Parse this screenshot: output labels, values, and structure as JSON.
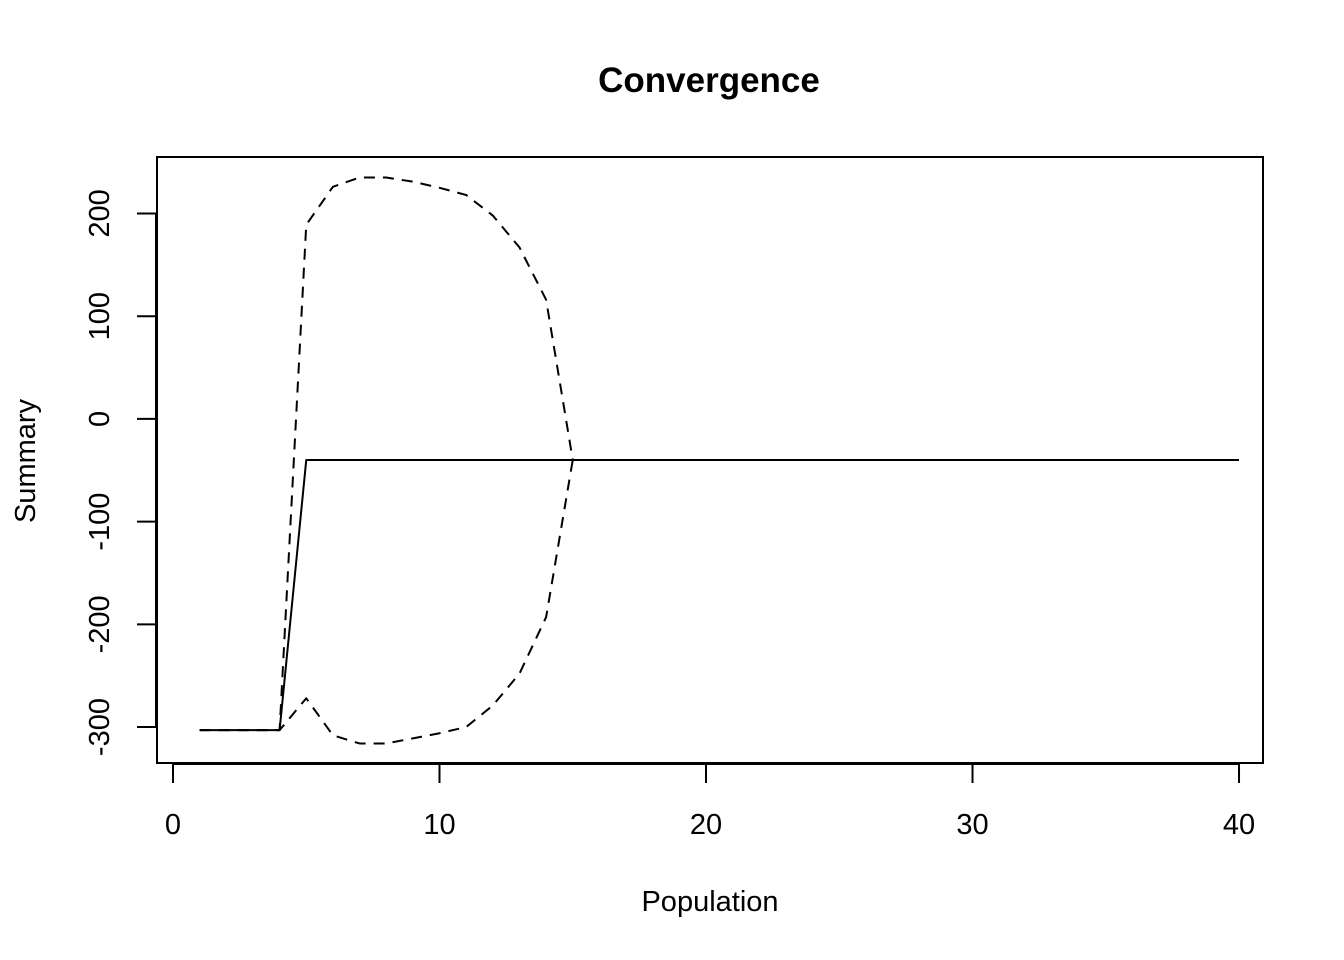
{
  "chart_data": {
    "type": "line",
    "title": "Convergence",
    "xlabel": "Population",
    "ylabel": "Summary",
    "xlim": [
      0,
      41.5
    ],
    "ylim": [
      -335,
      255
    ],
    "x_ticks": [
      0,
      10,
      20,
      30,
      40
    ],
    "x_tick_labels": [
      "0",
      "10",
      "20",
      "30",
      "40"
    ],
    "y_ticks": [
      -300,
      -200,
      -100,
      0,
      100,
      200
    ],
    "y_tick_labels": [
      "-300",
      "-200",
      "-100",
      "0",
      "100",
      "200"
    ],
    "grid": false,
    "legend": "none",
    "x": [
      1,
      2,
      3,
      4,
      5,
      6,
      7,
      8,
      9,
      10,
      11,
      12,
      13,
      14,
      15,
      16,
      17,
      18,
      19,
      20,
      21,
      22,
      23,
      24,
      25,
      26,
      27,
      28,
      29,
      30,
      31,
      32,
      33,
      34,
      35,
      36,
      37,
      38,
      39,
      40
    ],
    "series": [
      {
        "style": "solid",
        "color": "#000000",
        "values": [
          -303,
          -303,
          -303,
          -303,
          -40,
          -40,
          -40,
          -40,
          -40,
          -40,
          -40,
          -40,
          -40,
          -40,
          -40,
          -40,
          -40,
          -40,
          -40,
          -40,
          -40,
          -40,
          -40,
          -40,
          -40,
          -40,
          -40,
          -40,
          -40,
          -40,
          -40,
          -40,
          -40,
          -40,
          -40,
          -40,
          -40,
          -40,
          -40,
          -40
        ]
      },
      {
        "style": "dashed",
        "color": "#000000",
        "values": [
          -303,
          -303,
          -303,
          -303,
          189,
          226,
          235,
          235,
          231,
          225,
          218,
          198,
          167,
          116,
          -40,
          -40,
          -40,
          -40,
          -40,
          -40,
          -40,
          -40,
          -40,
          -40,
          -40,
          -40,
          -40,
          -40,
          -40,
          -40,
          -40,
          -40,
          -40,
          -40,
          -40,
          -40,
          -40,
          -40,
          -40,
          -40
        ]
      },
      {
        "style": "dashed",
        "color": "#000000",
        "values": [
          -303,
          -303,
          -303,
          -303,
          -272,
          -308,
          -316,
          -316,
          -311,
          -306,
          -300,
          -279,
          -248,
          -193,
          -40,
          -40,
          -40,
          -40,
          -40,
          -40,
          -40,
          -40,
          -40,
          -40,
          -40,
          -40,
          -40,
          -40,
          -40,
          -40,
          -40,
          -40,
          -40,
          -40,
          -40,
          -40,
          -40,
          -40,
          -40,
          -40
        ]
      }
    ]
  }
}
